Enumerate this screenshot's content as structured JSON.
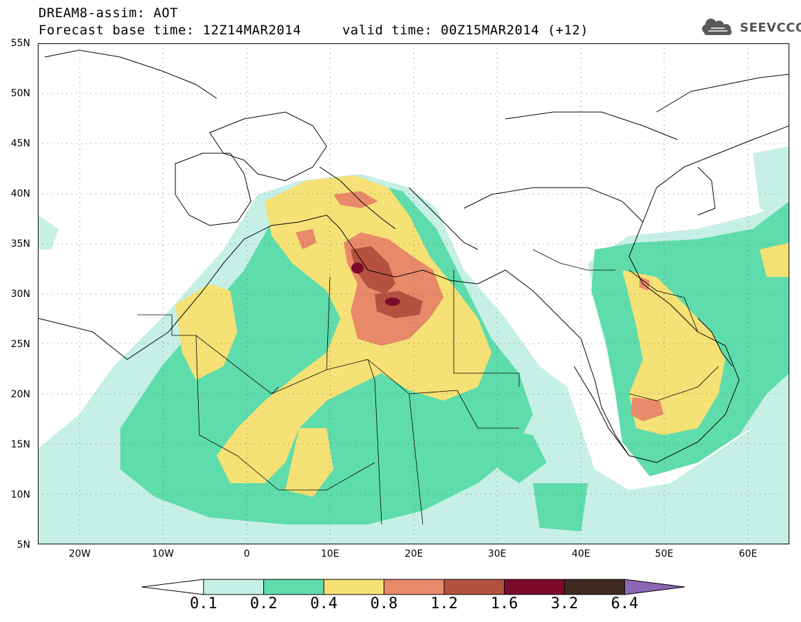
{
  "title": {
    "line1": "DREAM8-assim: AOT",
    "line2": "Forecast base time: 12Z14MAR2014     valid time: 00Z15MAR2014 (+12)"
  },
  "logo": {
    "text": "SEEVCCC"
  },
  "axes": {
    "lat_labels": [
      "55N",
      "50N",
      "45N",
      "40N",
      "35N",
      "30N",
      "25N",
      "20N",
      "15N",
      "10N",
      "5N"
    ],
    "lon_labels": [
      "20W",
      "10W",
      "0",
      "10E",
      "20E",
      "30E",
      "40E",
      "50E",
      "60E"
    ]
  },
  "colorbar": {
    "colors": [
      "#ffffff",
      "#c6efe6",
      "#5fdcab",
      "#f5e175",
      "#e8896a",
      "#b5523f",
      "#7c0a2b",
      "#3e2a1e",
      "#8b67b5"
    ],
    "labels": [
      "0.1",
      "0.2",
      "0.4",
      "0.8",
      "1.2",
      "1.6",
      "3.2",
      "6.4"
    ]
  }
}
